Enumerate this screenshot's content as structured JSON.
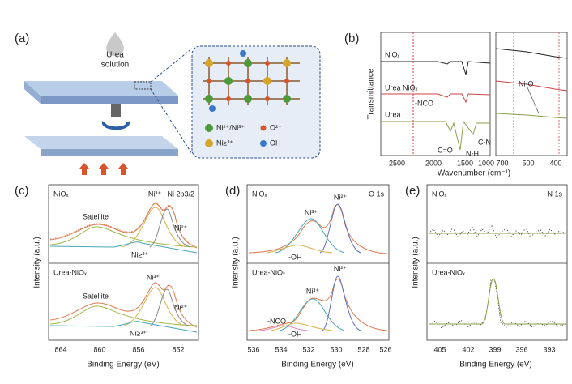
{
  "panels": {
    "a": {
      "label": "(a)",
      "droplet": [
        "Urea",
        "solution"
      ],
      "legend": [
        "Ni²⁺/Ni³⁺",
        "O²⁻",
        "Ni≥³⁺",
        "OH"
      ]
    },
    "b": {
      "label": "(b)",
      "y_label": "Transmittance",
      "x_label": "Wavenumber (cm⁻¹)",
      "traces": [
        "NiOₓ",
        "Urea NiOₓ",
        "Urea"
      ],
      "annotations": [
        "-NCO",
        "C=O",
        "N-H",
        "C-N",
        "Ni-O"
      ],
      "ticks": [
        "2500",
        "2000",
        "1500",
        "1000",
        "700",
        "500",
        "400"
      ]
    },
    "c": {
      "label": "(c)",
      "region": "Ni 2p3/2",
      "y_label": "Intensity (a.u.)",
      "x_label": "Binding Energy (eV)",
      "samples": [
        "NiOₓ",
        "Urea-NiOₓ"
      ],
      "top_labels": [
        "Satellite",
        "Ni³⁺",
        "Ni²⁺",
        "Ni≥³⁺"
      ],
      "bottom_labels": [
        "Satellite",
        "Ni³⁺",
        "Ni²⁺",
        "Ni≥³⁺"
      ],
      "ticks": [
        "864",
        "860",
        "856",
        "852"
      ]
    },
    "d": {
      "label": "(d)",
      "region": "O 1s",
      "y_label": "Intensity (a.u.)",
      "x_label": "Binding Energy (eV)",
      "samples": [
        "NiOₓ",
        "Urea-NiOₓ"
      ],
      "top_labels": [
        "Ni³⁺",
        "Ni²⁺",
        "-OH"
      ],
      "bottom_labels": [
        "Ni³⁺",
        "Ni²⁺",
        "-NCO",
        "-OH"
      ],
      "ticks": [
        "536",
        "534",
        "532",
        "530",
        "528",
        "526"
      ]
    },
    "e": {
      "label": "(e)",
      "region": "N 1s",
      "y_label": "Intensity (a.u.)",
      "x_label": "Binding Energy (eV)",
      "samples": [
        "NiOₓ",
        "Urea-NiOₓ"
      ],
      "ticks": [
        "405",
        "402",
        "399",
        "396",
        "393"
      ]
    }
  }
}
